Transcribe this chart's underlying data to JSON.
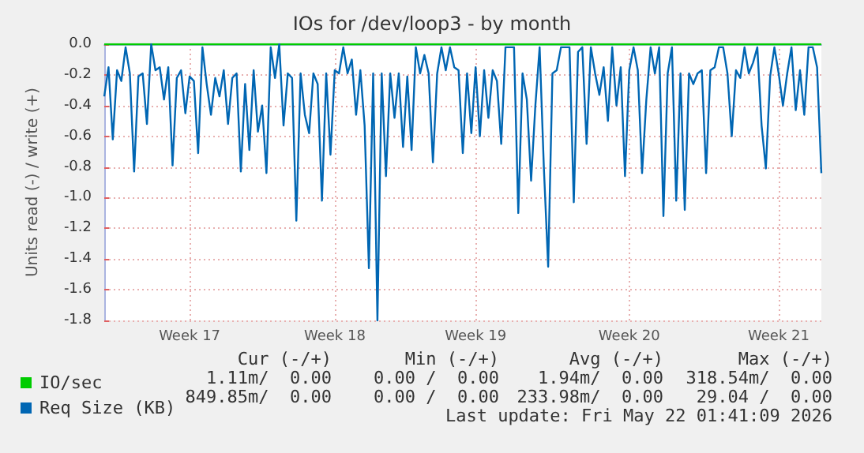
{
  "chart_data": {
    "type": "line",
    "title": "IOs for /dev/loop3 - by month",
    "ylabel": "Units read (-) / write (+)",
    "categories": [
      null,
      null,
      null,
      null,
      null,
      null,
      null,
      null,
      null,
      null,
      null,
      null,
      null,
      null,
      null,
      null,
      null,
      null,
      null,
      null,
      "Week 17",
      null,
      null,
      null,
      null,
      null,
      null,
      null,
      null,
      null,
      null,
      null,
      null,
      null,
      null,
      null,
      null,
      null,
      null,
      null,
      null,
      null,
      null,
      null,
      null,
      null,
      null,
      null,
      null,
      null,
      null,
      null,
      null,
      null,
      "Week 18",
      null,
      null,
      null,
      null,
      null,
      null,
      null,
      null,
      null,
      null,
      null,
      null,
      null,
      null,
      null,
      null,
      null,
      null,
      null,
      null,
      null,
      null,
      null,
      null,
      null,
      null,
      null,
      null,
      null,
      null,
      null,
      null,
      "Week 19",
      null,
      null,
      null,
      null,
      null,
      null,
      null,
      null,
      null,
      null,
      null,
      null,
      null,
      null,
      null,
      null,
      null,
      null,
      null,
      null,
      null,
      null,
      null,
      null,
      null,
      null,
      null,
      null,
      null,
      null,
      null,
      null,
      null,
      null,
      null,
      "Week 20",
      null,
      null,
      null,
      null,
      null,
      null,
      null,
      null,
      null,
      null,
      null,
      null,
      null,
      null,
      null,
      null,
      null,
      null,
      null,
      null,
      null,
      null,
      null,
      null,
      null,
      null,
      null,
      null,
      null,
      null,
      null,
      null,
      null,
      null,
      "Week 21",
      null,
      null,
      null,
      null,
      null,
      null,
      null,
      null,
      null,
      null
    ],
    "ylim": [
      -1.8,
      0
    ],
    "yticks": [
      -1.8,
      -1.6,
      -1.4,
      -1.2,
      {
        "value": -1.0,
        "label": "-1.0"
      },
      -0.8,
      -0.6,
      -0.4,
      -0.2,
      {
        "value": 0,
        "label": "0.0"
      }
    ],
    "grid": true,
    "legend": "bottom",
    "marker": "none",
    "line_style": "solid",
    "series": [
      {
        "name": "IO/sec",
        "color": "#00cc00",
        "values": [
          0,
          0,
          0,
          0,
          0,
          0,
          0,
          0,
          0,
          0,
          0,
          0,
          0,
          0,
          0,
          0,
          0,
          0,
          0,
          0,
          0,
          0,
          0,
          0,
          0,
          0,
          0,
          0,
          0,
          0,
          0,
          0,
          0,
          0,
          0,
          0,
          0,
          0,
          0,
          0,
          0,
          0,
          0,
          0,
          0,
          0,
          0,
          0,
          0,
          0,
          0,
          0,
          0,
          0,
          0,
          0,
          0,
          0,
          0,
          0,
          0,
          0,
          0,
          0,
          0,
          0,
          0,
          0,
          0,
          0,
          0,
          0,
          0,
          0,
          0,
          0,
          0,
          0,
          0,
          0,
          0,
          0,
          0,
          0,
          0,
          0,
          0,
          0,
          0,
          0,
          0,
          0,
          0,
          0,
          0,
          0,
          0,
          0,
          0,
          0,
          0,
          0,
          0,
          0,
          0,
          0,
          0,
          0,
          0,
          0,
          0,
          0,
          0,
          0,
          0,
          0,
          0,
          0,
          0,
          0,
          0,
          0,
          0,
          0,
          0,
          0,
          0,
          0,
          0,
          0,
          0,
          0,
          0,
          0,
          0,
          0,
          0,
          0,
          0,
          0,
          0,
          0,
          0,
          0,
          0,
          0,
          0,
          0,
          0,
          0,
          0,
          0,
          0,
          0,
          0,
          0,
          0,
          0,
          0,
          0,
          0,
          0,
          0,
          0,
          0,
          0,
          0,
          0,
          0
        ]
      },
      {
        "name": "Req Size (KB)",
        "color": "#0066b3",
        "values": [
          -0.34,
          -0.15,
          -0.62,
          -0.17,
          -0.24,
          -0.02,
          -0.19,
          -0.83,
          -0.21,
          -0.19,
          -0.52,
          0,
          -0.17,
          -0.15,
          -0.36,
          -0.15,
          -0.79,
          -0.22,
          -0.17,
          -0.45,
          -0.21,
          -0.24,
          -0.71,
          -0.02,
          -0.26,
          -0.46,
          -0.22,
          -0.34,
          -0.17,
          -0.52,
          -0.22,
          -0.19,
          -0.83,
          -0.26,
          -0.69,
          -0.17,
          -0.57,
          -0.4,
          -0.84,
          -0.02,
          -0.22,
          0,
          -0.53,
          -0.19,
          -0.22,
          -1.15,
          -0.19,
          -0.46,
          -0.58,
          -0.19,
          -0.26,
          -1.02,
          -0.19,
          -0.72,
          -0.17,
          -0.19,
          -0.02,
          -0.19,
          -0.1,
          -0.46,
          -0.17,
          -0.53,
          -1.46,
          -0.19,
          -1.8,
          -0.19,
          -0.86,
          -0.19,
          -0.48,
          -0.19,
          -0.67,
          -0.21,
          -0.69,
          -0.02,
          -0.19,
          -0.07,
          -0.19,
          -0.77,
          -0.19,
          -0.02,
          -0.17,
          -0.02,
          -0.15,
          -0.17,
          -0.71,
          -0.19,
          -0.58,
          -0.15,
          -0.6,
          -0.17,
          -0.48,
          -0.17,
          -0.24,
          -0.65,
          -0.02,
          -0.02,
          -0.02,
          -1.1,
          -0.19,
          -0.36,
          -0.89,
          -0.4,
          -0.02,
          -0.81,
          -1.45,
          -0.19,
          -0.17,
          -0.02,
          -0.02,
          -0.02,
          -1.03,
          -0.05,
          -0.02,
          -0.65,
          -0.02,
          -0.19,
          -0.33,
          -0.15,
          -0.5,
          -0.02,
          -0.4,
          -0.15,
          -0.86,
          -0.17,
          -0.02,
          -0.17,
          -0.84,
          -0.36,
          -0.02,
          -0.19,
          -0.02,
          -1.12,
          -0.19,
          -0.02,
          -1.02,
          -0.19,
          -1.08,
          -0.19,
          -0.26,
          -0.19,
          -0.17,
          -0.84,
          -0.17,
          -0.15,
          -0.02,
          -0.02,
          -0.19,
          -0.6,
          -0.17,
          -0.22,
          -0.02,
          -0.19,
          -0.12,
          -0.02,
          -0.53,
          -0.81,
          -0.21,
          -0.02,
          -0.19,
          -0.4,
          -0.19,
          -0.02,
          -0.43,
          -0.17,
          -0.46,
          -0.02,
          -0.02,
          -0.15,
          -0.84
        ]
      }
    ],
    "annotations": [
      "Cur (-/+)",
      "Min (-/+)",
      "Avg (-/+)",
      "Max (-/+)",
      "1.11m/  0.00",
      "0.00 /  0.00",
      "1.94m/  0.00",
      "318.54m/  0.00",
      "849.85m/  0.00",
      "0.00 /  0.00",
      "233.98m/  0.00",
      "29.04 /  0.00",
      "Last update: Fri May 22 01:41:09 2026"
    ]
  }
}
